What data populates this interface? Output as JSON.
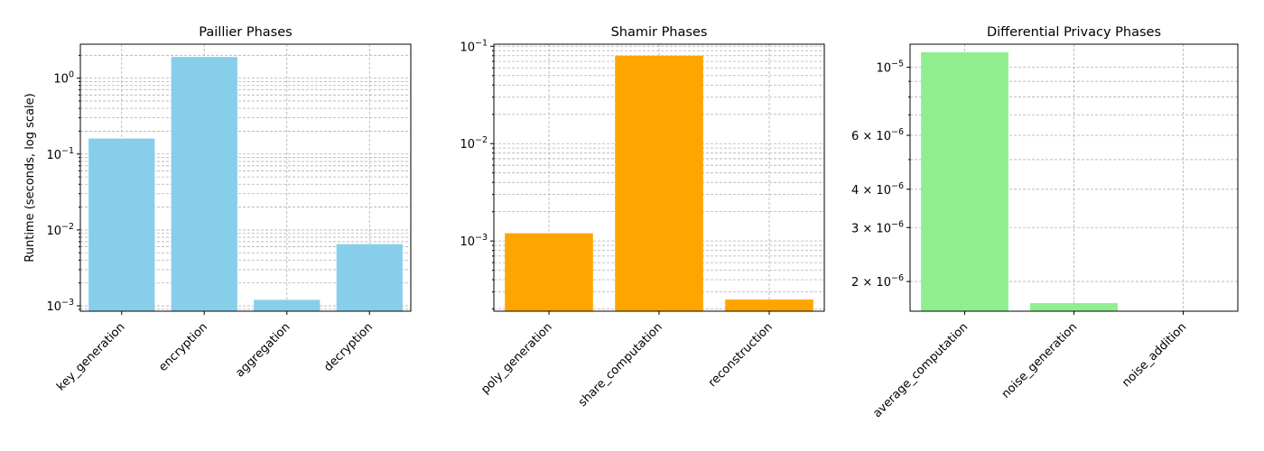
{
  "chart_data": [
    {
      "type": "bar",
      "title": "Paillier Phases",
      "ylabel": "Runtime (seconds, log scale)",
      "yscale": "log",
      "grid": true,
      "color": "#87ceeb",
      "categories": [
        "key_generation",
        "encryption",
        "aggregation",
        "decryption"
      ],
      "values": [
        0.16,
        1.9,
        0.0012,
        0.0065
      ],
      "ylim": [
        0.00085,
        2.8
      ],
      "yticks": [
        {
          "value": 1,
          "label": "10",
          "exp": "0"
        },
        {
          "value": 0.1,
          "label": "10",
          "exp": "−1"
        },
        {
          "value": 0.01,
          "label": "10",
          "exp": "−2"
        },
        {
          "value": 0.001,
          "label": "10",
          "exp": "−3"
        }
      ]
    },
    {
      "type": "bar",
      "title": "Shamir Phases",
      "ylabel": "",
      "yscale": "log",
      "grid": true,
      "color": "#ffa500",
      "categories": [
        "poly_generation",
        "share_computation",
        "reconstruction"
      ],
      "values": [
        0.0012,
        0.08,
        0.00025
      ],
      "ylim": [
        0.00019,
        0.105
      ],
      "yticks": [
        {
          "value": 0.1,
          "label": "10",
          "exp": "−1"
        },
        {
          "value": 0.01,
          "label": "10",
          "exp": "−2"
        },
        {
          "value": 0.001,
          "label": "10",
          "exp": "−3"
        }
      ]
    },
    {
      "type": "bar",
      "title": "Differential Privacy Phases",
      "ylabel": "",
      "yscale": "log",
      "grid": true,
      "color": "#90ee90",
      "categories": [
        "average_computation",
        "noise_generation",
        "noise_addition"
      ],
      "values": [
        1.12e-05,
        1.7e-06,
        1.6e-06
      ],
      "ylim": [
        1.6e-06,
        1.19e-05
      ],
      "yticks": [
        {
          "value": 1e-05,
          "label": "10",
          "exp": "−5"
        },
        {
          "value": 6e-06,
          "label": "6 × 10",
          "exp": "−6"
        },
        {
          "value": 4e-06,
          "label": "4 × 10",
          "exp": "−6"
        },
        {
          "value": 3e-06,
          "label": "3 × 10",
          "exp": "−6"
        },
        {
          "value": 2e-06,
          "label": "2 × 10",
          "exp": "−6"
        }
      ]
    }
  ]
}
